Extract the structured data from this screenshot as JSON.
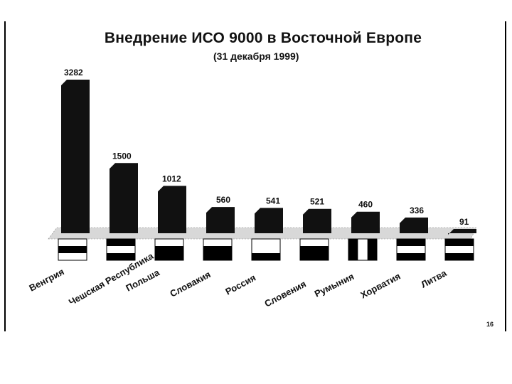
{
  "slide": {
    "title": "Внедрение ИСО 9000 в Восточной Европе",
    "subtitle": "(31 декабря 1999)",
    "footer_lines": [
      "",
      ""
    ],
    "page_number": "16"
  },
  "chart_data": {
    "type": "bar",
    "title": "Внедрение ИСО 9000 в Восточной Европе",
    "subtitle": "(31 декабря 1999)",
    "categories": [
      "Венгрия",
      "Чешская Республика",
      "Польша",
      "Словакия",
      "Россия",
      "Словения",
      "Румыния",
      "Хорватия",
      "Литва"
    ],
    "values": [
      3282,
      1500,
      1012,
      560,
      541,
      521,
      460,
      336,
      91
    ],
    "value_labels": [
      "3282",
      "1500",
      "1012",
      "560",
      "541",
      "521",
      "460",
      "336",
      "91"
    ],
    "xlabel": "",
    "ylabel": "",
    "grid": false,
    "legend": "none",
    "colors": {
      "bar": "#111111",
      "text": "#111111",
      "background": "#ffffff"
    }
  }
}
